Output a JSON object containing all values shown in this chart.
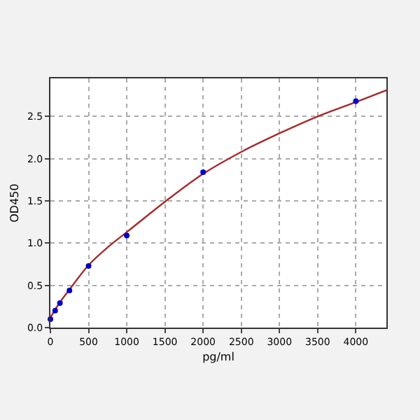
{
  "chart_data": {
    "type": "scatter",
    "xlabel": "pg/ml",
    "ylabel": "OD450",
    "xlim": [
      0,
      4400
    ],
    "ylim": [
      0,
      2.95
    ],
    "xticks": [
      0,
      500,
      1000,
      1500,
      2000,
      2500,
      3000,
      3500,
      4000
    ],
    "yticks": [
      {
        "value": 0,
        "label": "0.0"
      },
      0.5,
      {
        "value": 1,
        "label": "1.0"
      },
      1.5,
      {
        "value": 2,
        "label": "2.0"
      },
      2.5
    ],
    "grid": true,
    "marker": "circle",
    "series": [
      {
        "type": "line",
        "color": "#a52a2a",
        "marker": "none",
        "x": [
          0,
          125,
          250,
          500,
          750,
          1000,
          1500,
          2000,
          2500,
          3000,
          3500,
          4000,
          4400
        ],
        "values": [
          0.12,
          0.3,
          0.45,
          0.74,
          0.95,
          1.13,
          1.49,
          1.82,
          2.08,
          2.3,
          2.5,
          2.67,
          2.81
        ]
      },
      {
        "color": "#0000cc",
        "x": [
          0,
          62.5,
          125,
          250,
          500,
          1000,
          2000,
          4000
        ],
        "values": [
          0.1,
          0.2,
          0.29,
          0.44,
          0.73,
          1.09,
          1.84,
          2.68
        ]
      }
    ]
  }
}
